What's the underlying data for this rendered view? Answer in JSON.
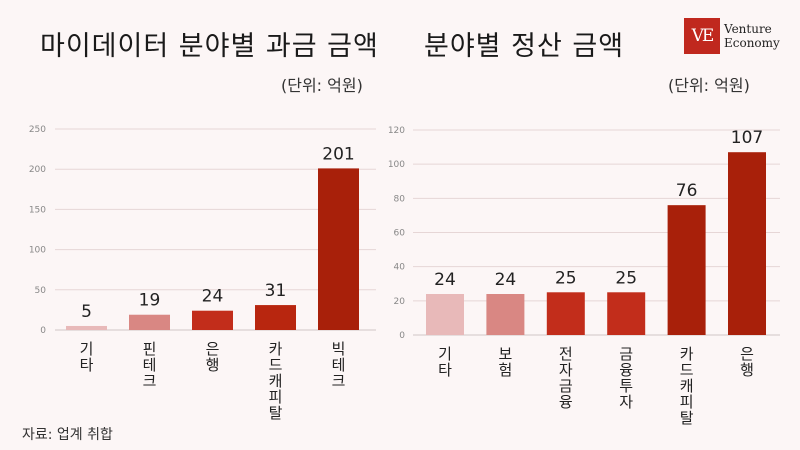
{
  "title_left": "마이데이터 분야별 과금 금액",
  "title_right": "분야별 정산 금액",
  "unit_left": "(단위: 억원)",
  "unit_right": "(단위: 억원)",
  "logo": {
    "mark": "VE",
    "line1": "Venture",
    "line2": "Economy",
    "color": "#c0281e"
  },
  "source": "자료: 업계 취합",
  "chart_data": [
    {
      "type": "bar",
      "categories": [
        "기타",
        "핀테크",
        "은행",
        "카드캐피탈",
        "빅테크"
      ],
      "values": [
        5,
        19,
        24,
        31,
        201
      ],
      "ylim": [
        0,
        250
      ],
      "yticks": [
        0,
        50,
        100,
        150,
        200,
        250
      ],
      "colors": [
        "#e8b9b9",
        "#d98783",
        "#c22d1b",
        "#b8260f",
        "#a8200a"
      ],
      "grid": true
    },
    {
      "type": "bar",
      "categories": [
        "기타",
        "보험",
        "전자금융",
        "금융투자",
        "카드캐피탈",
        "은행"
      ],
      "values": [
        24,
        24,
        25,
        25,
        76,
        107
      ],
      "ylim": [
        0,
        120
      ],
      "yticks": [
        0,
        20,
        40,
        60,
        80,
        100,
        120
      ],
      "colors": [
        "#e8b9b9",
        "#d98783",
        "#c22d1b",
        "#c22d1b",
        "#a8200a",
        "#a8200a"
      ],
      "grid": true
    }
  ]
}
